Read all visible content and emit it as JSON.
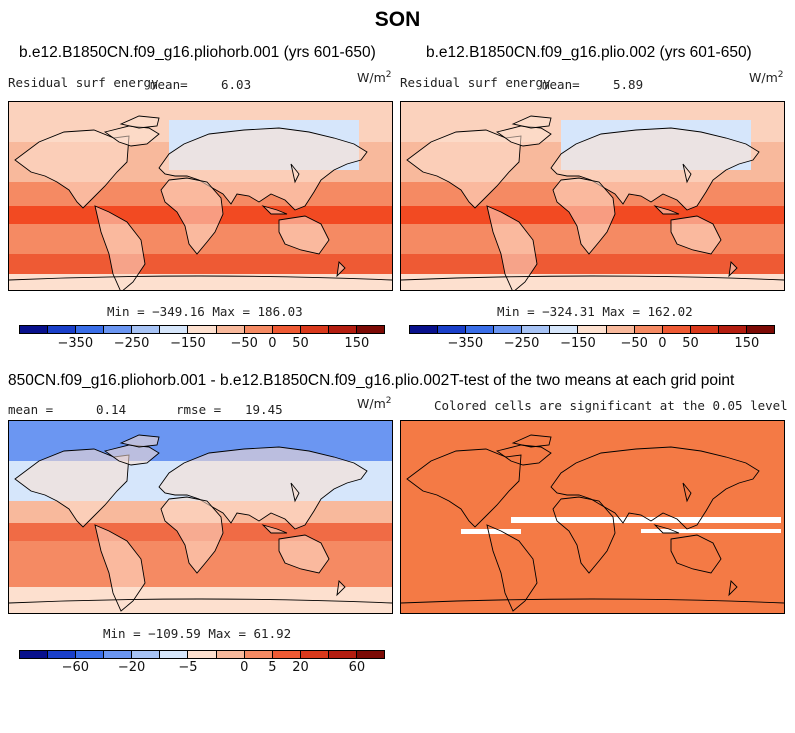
{
  "title": "SON",
  "panels": [
    {
      "title": "b.e12.B1850CN.f09_g16.pliohorb.001 (yrs 601-650)",
      "var_label": "Residual surf energy",
      "mean_label": "mean=",
      "mean_value": "6.03",
      "units_base": "W/m",
      "units_exp": "2",
      "stats": "Min = −349.16 Max = 186.03",
      "ocean_fill": "#f24a22"
    },
    {
      "title": "b.e12.B1850CN.f09_g16.plio.002 (yrs 601-650)",
      "var_label": "Residual surf energy",
      "mean_label": "mean=",
      "mean_value": "5.89",
      "units_base": "W/m",
      "units_exp": "2",
      "stats": "Min = −324.31 Max = 162.02",
      "ocean_fill": "#f24a22"
    },
    {
      "title": "850CN.f09_g16.pliohorb.001 - b.e12.B1850CN.f09_g16.plio.002",
      "mean_label": "mean =",
      "mean_value": "0.14",
      "rmse_label": "rmse =",
      "rmse_value": "19.45",
      "units_base": "W/m",
      "units_exp": "2",
      "stats": "Min = −109.59 Max = 61.92",
      "ocean_fill": "#f06b45"
    },
    {
      "title": "T-test of the two means at each grid point",
      "subtitle": "Colored cells are significant at the 0.05 level",
      "ocean_fill": "#f47a45"
    }
  ],
  "colorbar_top": {
    "colors": [
      "#08108c",
      "#1a3fc9",
      "#3a6ee8",
      "#6b96f2",
      "#a7c3f5",
      "#d6e6fb",
      "#fde0cf",
      "#f8b99c",
      "#f58a63",
      "#ee5a34",
      "#d9391c",
      "#b31d10",
      "#7c0a05"
    ],
    "labels": [
      "−350",
      "−250",
      "−150",
      "−50",
      "0",
      "50",
      "150"
    ]
  },
  "colorbar_bottom": {
    "colors": [
      "#08108c",
      "#1a3fc9",
      "#3a6ee8",
      "#6b96f2",
      "#a7c3f5",
      "#d6e6fb",
      "#fde0cf",
      "#f8b99c",
      "#f58a63",
      "#ee5a34",
      "#d9391c",
      "#b31d10",
      "#7c0a05"
    ],
    "labels": [
      "−60",
      "−20",
      "−5",
      "0",
      "5",
      "20",
      "60"
    ]
  }
}
